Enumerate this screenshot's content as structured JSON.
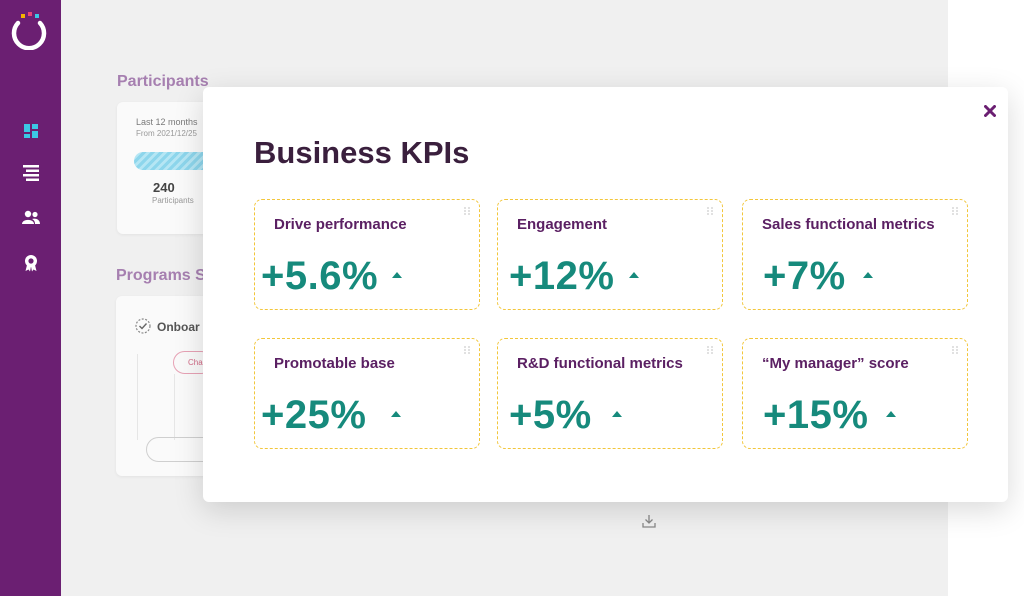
{
  "colors": {
    "sidebar": "#6b1f72",
    "kpi_value": "#168a7c",
    "kpi_label": "#5b2063",
    "card_border": "#f2c63b",
    "title": "#3a1f3d"
  },
  "sidebar": {
    "logo_icon": "brand-ring-logo",
    "nav_items": [
      {
        "icon": "dashboard-icon"
      },
      {
        "icon": "list-icon"
      },
      {
        "icon": "users-icon"
      },
      {
        "icon": "award-icon"
      }
    ]
  },
  "background": {
    "participants": {
      "section_title": "Participants",
      "period_label": "Last 12 months",
      "date_range": "From 2021/12/25",
      "count": "240",
      "count_label": "Participants"
    },
    "programs": {
      "section_title": "Programs St",
      "program_name": "Onboar",
      "button_label": "Cha"
    },
    "download_icon": "download-icon"
  },
  "modal": {
    "title": "Business KPIs",
    "close_icon": "close-icon",
    "kpis": [
      {
        "label": "Drive performance",
        "value": "+5.6%",
        "trend": "up"
      },
      {
        "label": "Engagement",
        "value": "+12%",
        "trend": "up"
      },
      {
        "label": "Sales functional metrics",
        "value": "+7%",
        "trend": "up"
      },
      {
        "label": "Promotable base",
        "value": "+25%",
        "trend": "up"
      },
      {
        "label": "R&D functional metrics",
        "value": "+5%",
        "trend": "up"
      },
      {
        "label": "“My manager” score",
        "value": "+15%",
        "trend": "up"
      }
    ]
  }
}
